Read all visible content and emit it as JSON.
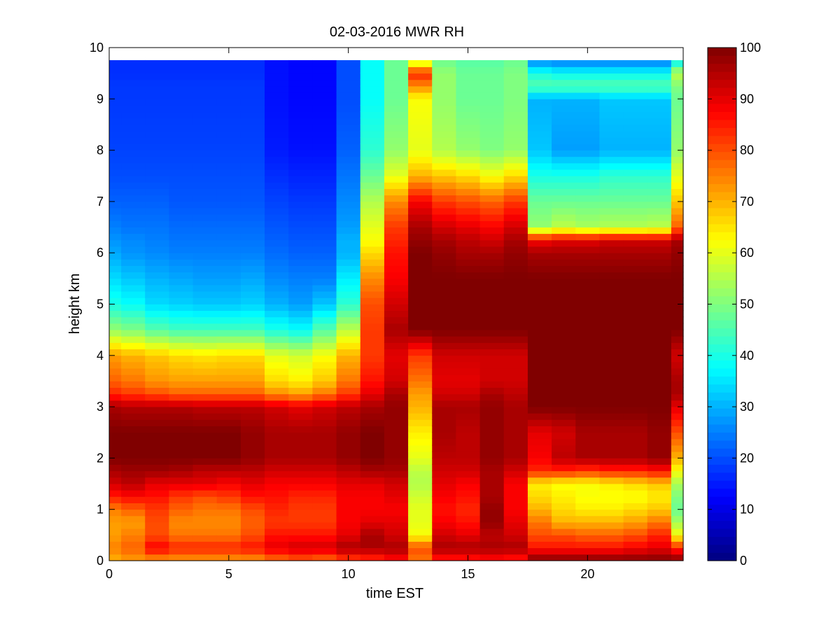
{
  "chart_data": {
    "type": "heatmap",
    "title": "02-03-2016 MWR RH",
    "xlabel": "time EST",
    "ylabel": "height km",
    "xlim": [
      0,
      24
    ],
    "ylim": [
      0,
      10
    ],
    "clim": [
      0,
      100
    ],
    "x_ticks": [
      "0",
      "5",
      "10",
      "15",
      "20"
    ],
    "y_ticks": [
      "0",
      "1",
      "2",
      "3",
      "4",
      "5",
      "6",
      "7",
      "8",
      "9",
      "10"
    ],
    "colorbar_ticks": [
      "0",
      "10",
      "20",
      "30",
      "40",
      "50",
      "60",
      "70",
      "80",
      "90",
      "100"
    ],
    "colormap": "jet",
    "x": [
      0.25,
      0.75,
      1.75,
      2.75,
      3.75,
      4.75,
      5.75,
      6.75,
      7.75,
      8.75,
      9.75,
      10.75,
      11.75,
      12.75,
      13.75,
      14.75,
      15.75,
      16.75,
      17.75,
      18.75,
      19.75,
      20.75,
      21.75,
      22.75,
      23.25
    ],
    "x_edges": [
      0,
      0.5,
      1.5,
      2.5,
      3.5,
      4.5,
      5.5,
      6.5,
      7.5,
      8.5,
      9.5,
      10.5,
      11.5,
      12.5,
      13.5,
      14.5,
      15.5,
      16.5,
      17.5,
      18.5,
      19.5,
      20.5,
      21.5,
      22.5,
      23.5
    ],
    "height_nodes": [
      0,
      0.25,
      0.5,
      0.75,
      1.0,
      1.25,
      1.5,
      1.75,
      2.0,
      2.5,
      3.0,
      3.25,
      3.5,
      4.0,
      4.5,
      5.0,
      5.5,
      6.0,
      6.25,
      6.5,
      7.0,
      7.5,
      8.0,
      9.0,
      9.25,
      9.5,
      9.75
    ],
    "rh_profiles": [
      [
        70,
        75,
        72,
        72,
        75,
        85,
        92,
        96,
        100,
        100,
        96,
        84,
        78,
        72,
        52,
        40,
        34,
        29,
        27,
        25,
        22,
        20,
        19,
        18,
        18,
        17,
        17
      ],
      [
        72,
        78,
        75,
        72,
        78,
        87,
        94,
        97,
        100,
        100,
        95,
        82,
        76,
        70,
        50,
        38,
        32,
        27,
        26,
        24,
        22,
        20,
        19,
        18,
        18,
        17,
        17
      ],
      [
        72,
        88,
        80,
        80,
        82,
        86,
        90,
        97,
        100,
        100,
        95,
        80,
        73,
        68,
        46,
        34,
        30,
        26,
        25,
        24,
        22,
        20,
        19,
        18,
        18,
        17,
        17
      ],
      [
        72,
        84,
        76,
        74,
        78,
        82,
        90,
        96,
        100,
        100,
        95,
        78,
        72,
        66,
        44,
        33,
        29,
        25,
        24,
        23,
        21,
        20,
        19,
        18,
        18,
        17,
        17
      ],
      [
        72,
        84,
        76,
        74,
        76,
        80,
        90,
        94,
        100,
        100,
        94,
        78,
        72,
        65,
        44,
        32,
        28,
        25,
        24,
        23,
        21,
        20,
        19,
        18,
        18,
        17,
        17
      ],
      [
        72,
        84,
        76,
        74,
        76,
        82,
        88,
        94,
        100,
        100,
        94,
        78,
        72,
        66,
        44,
        32,
        28,
        25,
        24,
        23,
        21,
        20,
        19,
        18,
        18,
        17,
        17
      ],
      [
        72,
        86,
        80,
        78,
        80,
        86,
        90,
        94,
        98,
        98,
        94,
        78,
        72,
        66,
        44,
        33,
        29,
        25,
        24,
        23,
        21,
        20,
        19,
        18,
        18,
        17,
        17
      ],
      [
        76,
        90,
        86,
        82,
        84,
        86,
        88,
        92,
        96,
        96,
        92,
        74,
        66,
        60,
        40,
        30,
        26,
        23,
        22,
        21,
        19,
        17,
        15,
        14,
        14,
        14,
        14
      ],
      [
        78,
        92,
        86,
        82,
        82,
        84,
        88,
        92,
        96,
        96,
        90,
        72,
        64,
        58,
        38,
        28,
        25,
        22,
        21,
        20,
        18,
        16,
        14,
        13,
        13,
        13,
        13
      ],
      [
        76,
        92,
        86,
        82,
        82,
        84,
        88,
        92,
        96,
        96,
        92,
        76,
        68,
        62,
        46,
        32,
        25,
        22,
        21,
        20,
        18,
        16,
        14,
        13,
        13,
        13,
        13
      ],
      [
        80,
        96,
        90,
        88,
        88,
        88,
        90,
        94,
        98,
        98,
        94,
        82,
        76,
        70,
        56,
        42,
        36,
        30,
        30,
        28,
        26,
        24,
        22,
        20,
        20,
        20,
        20
      ],
      [
        82,
        96,
        96,
        90,
        88,
        88,
        90,
        96,
        100,
        100,
        96,
        90,
        86,
        82,
        82,
        80,
        74,
        66,
        62,
        60,
        55,
        48,
        42,
        38,
        38,
        38,
        38
      ],
      [
        86,
        96,
        92,
        90,
        88,
        90,
        92,
        96,
        98,
        98,
        98,
        96,
        92,
        90,
        96,
        92,
        88,
        86,
        84,
        82,
        74,
        60,
        52,
        48,
        48,
        48,
        48
      ],
      [
        76,
        80,
        62,
        60,
        60,
        58,
        55,
        56,
        60,
        64,
        70,
        72,
        76,
        82,
        100,
        100,
        100,
        100,
        98,
        96,
        88,
        70,
        60,
        62,
        74,
        84,
        55
      ],
      [
        84,
        96,
        92,
        88,
        86,
        88,
        90,
        92,
        94,
        96,
        96,
        92,
        90,
        92,
        100,
        100,
        100,
        98,
        96,
        92,
        82,
        68,
        55,
        52,
        52,
        52,
        48
      ],
      [
        84,
        96,
        90,
        86,
        84,
        86,
        88,
        92,
        94,
        94,
        96,
        92,
        90,
        92,
        100,
        100,
        100,
        96,
        94,
        90,
        80,
        66,
        52,
        48,
        48,
        48,
        46
      ],
      [
        86,
        96,
        94,
        98,
        98,
        96,
        96,
        96,
        98,
        98,
        98,
        96,
        92,
        92,
        100,
        100,
        100,
        96,
        92,
        88,
        78,
        62,
        50,
        48,
        48,
        48,
        46
      ],
      [
        84,
        96,
        92,
        90,
        88,
        88,
        88,
        92,
        96,
        96,
        96,
        94,
        92,
        92,
        100,
        100,
        100,
        98,
        96,
        92,
        82,
        66,
        52,
        50,
        50,
        50,
        48
      ],
      [
        100,
        86,
        80,
        76,
        70,
        66,
        64,
        84,
        88,
        90,
        100,
        100,
        100,
        100,
        100,
        100,
        100,
        96,
        88,
        52,
        48,
        40,
        32,
        30,
        46,
        40,
        25
      ],
      [
        100,
        86,
        80,
        70,
        66,
        64,
        62,
        84,
        94,
        92,
        100,
        100,
        100,
        100,
        100,
        100,
        100,
        96,
        90,
        56,
        48,
        40,
        28,
        30,
        46,
        38,
        24
      ],
      [
        100,
        86,
        78,
        70,
        64,
        62,
        62,
        82,
        96,
        96,
        100,
        100,
        100,
        100,
        100,
        100,
        100,
        96,
        90,
        54,
        48,
        40,
        28,
        30,
        46,
        38,
        24
      ],
      [
        100,
        86,
        78,
        70,
        64,
        62,
        64,
        84,
        96,
        96,
        100,
        100,
        100,
        100,
        100,
        100,
        100,
        96,
        92,
        55,
        48,
        42,
        30,
        32,
        46,
        38,
        24
      ],
      [
        100,
        88,
        80,
        72,
        66,
        62,
        66,
        84,
        96,
        96,
        100,
        100,
        100,
        100,
        100,
        100,
        100,
        96,
        92,
        55,
        48,
        42,
        30,
        32,
        46,
        38,
        24
      ],
      [
        100,
        90,
        84,
        76,
        68,
        64,
        68,
        86,
        98,
        98,
        100,
        100,
        100,
        100,
        100,
        100,
        100,
        96,
        92,
        56,
        48,
        42,
        30,
        32,
        46,
        38,
        24
      ],
      [
        100,
        84,
        62,
        54,
        48,
        50,
        54,
        62,
        70,
        80,
        90,
        96,
        96,
        92,
        100,
        100,
        100,
        98,
        96,
        78,
        68,
        60,
        52,
        48,
        50,
        56,
        36
      ]
    ]
  }
}
